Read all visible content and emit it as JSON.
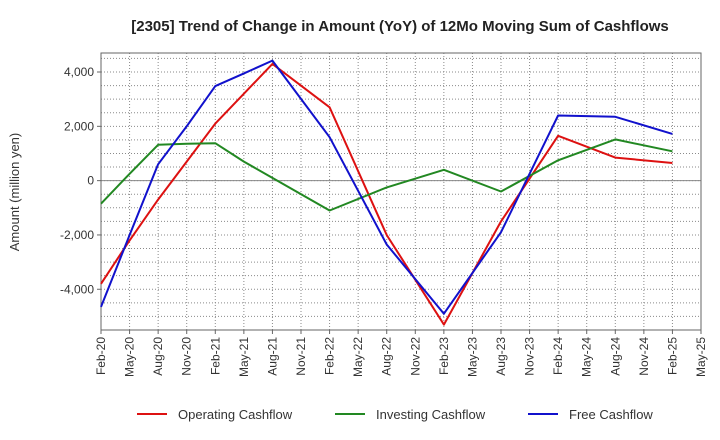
{
  "chart_data": {
    "type": "line",
    "title": "[2305]  Trend of Change in Amount (YoY) of 12Mo Moving Sum of Cashflows",
    "xlabel": "",
    "ylabel": "Amount (million yen)",
    "ylim": [
      -5500,
      4700
    ],
    "yticks": [
      -4000,
      -2000,
      0,
      2000,
      4000
    ],
    "ytick_labels": [
      "-4,000",
      "-2,000",
      "0",
      "2,000",
      "4,000"
    ],
    "categories": [
      "Feb-20",
      "May-20",
      "Aug-20",
      "Nov-20",
      "Feb-21",
      "May-21",
      "Aug-21",
      "Nov-21",
      "Feb-22",
      "May-22",
      "Aug-22",
      "Nov-22",
      "Feb-23",
      "May-23",
      "Aug-23",
      "Nov-23",
      "Feb-24",
      "May-24",
      "Aug-24",
      "Nov-24",
      "Feb-25",
      "May-25"
    ],
    "grid": true,
    "legend_position": "bottom",
    "series": [
      {
        "name": "Operating Cashflow",
        "color": "#dd1111",
        "values": [
          -3800,
          -2200,
          -700,
          700,
          2100,
          3200,
          4300,
          null,
          2700,
          null,
          -2000,
          null,
          -5300,
          null,
          -1500,
          null,
          1650,
          null,
          850,
          null,
          650,
          null
        ]
      },
      {
        "name": "Investing Cashflow",
        "color": "#228822",
        "values": [
          -850,
          250,
          1320,
          1360,
          1380,
          700,
          100,
          null,
          -1100,
          null,
          -250,
          null,
          400,
          null,
          -400,
          null,
          750,
          null,
          1520,
          null,
          1080,
          null
        ]
      },
      {
        "name": "Free Cashflow",
        "color": "#1111cc",
        "values": [
          -4650,
          -2000,
          600,
          2000,
          3480,
          3950,
          4420,
          null,
          1600,
          null,
          -2350,
          null,
          -4900,
          null,
          -1900,
          null,
          2400,
          null,
          2350,
          null,
          1720,
          null
        ]
      }
    ]
  }
}
